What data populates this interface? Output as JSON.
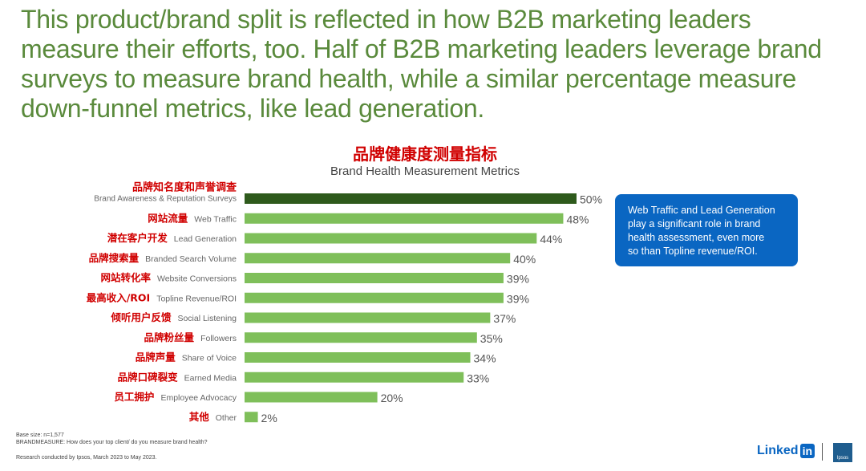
{
  "headline": "This product/brand split is reflected in how B2B marketing leaders measure their efforts, too. Half of B2B marketing leaders leverage brand surveys to measure brand health, while a similar percentage measure down-funnel metrics, like lead generation.",
  "chart_data": {
    "type": "bar",
    "orientation": "horizontal",
    "title": "品牌健康度测量指标",
    "subtitle": "Brand Health Measurement Metrics",
    "categories": [
      "Brand Awareness & Reputation Surveys",
      "Web Traffic",
      "Lead Generation",
      "Branded Search Volume",
      "Website Conversions",
      "Topline Revenue/ROI",
      "Social Listening",
      "Followers",
      "Share of Voice",
      "Earned Media",
      "Employee Advocacy",
      "Other"
    ],
    "categories_cn": [
      "品牌知名度和声誉调查",
      "网站流量",
      "潜在客户开发",
      "品牌搜索量",
      "网站转化率",
      "最高收入/ROI",
      "倾听用户反馈",
      "品牌粉丝量",
      "品牌声量",
      "品牌口碑裂变",
      "员工拥护",
      "其他"
    ],
    "values": [
      50,
      48,
      44,
      40,
      39,
      39,
      37,
      35,
      34,
      33,
      20,
      2
    ],
    "value_labels": [
      "50%",
      "48%",
      "44%",
      "40%",
      "39%",
      "39%",
      "37%",
      "35%",
      "34%",
      "33%",
      "20%",
      "2%"
    ],
    "highlight_color": "#2e5a1c",
    "bar_color": "#7fbf5a",
    "grid": false,
    "legend": "none"
  },
  "callout": {
    "lines": [
      "Web Traffic and Lead Generation",
      "play a significant role in brand",
      "health assessment, even more",
      "so than Topline revenue/ROI."
    ],
    "color": "#0a66c2"
  },
  "footnotes": {
    "base": "Base size: n=1,577",
    "question": "BRANDMEASURE: How does your top client/ do you measure brand health?",
    "source": "Research conducted by Ipsos, March 2023 to May 2023."
  },
  "logos": {
    "linkedin_text": "Linked",
    "linkedin_box": "in",
    "ipsos": "Ipsos"
  }
}
